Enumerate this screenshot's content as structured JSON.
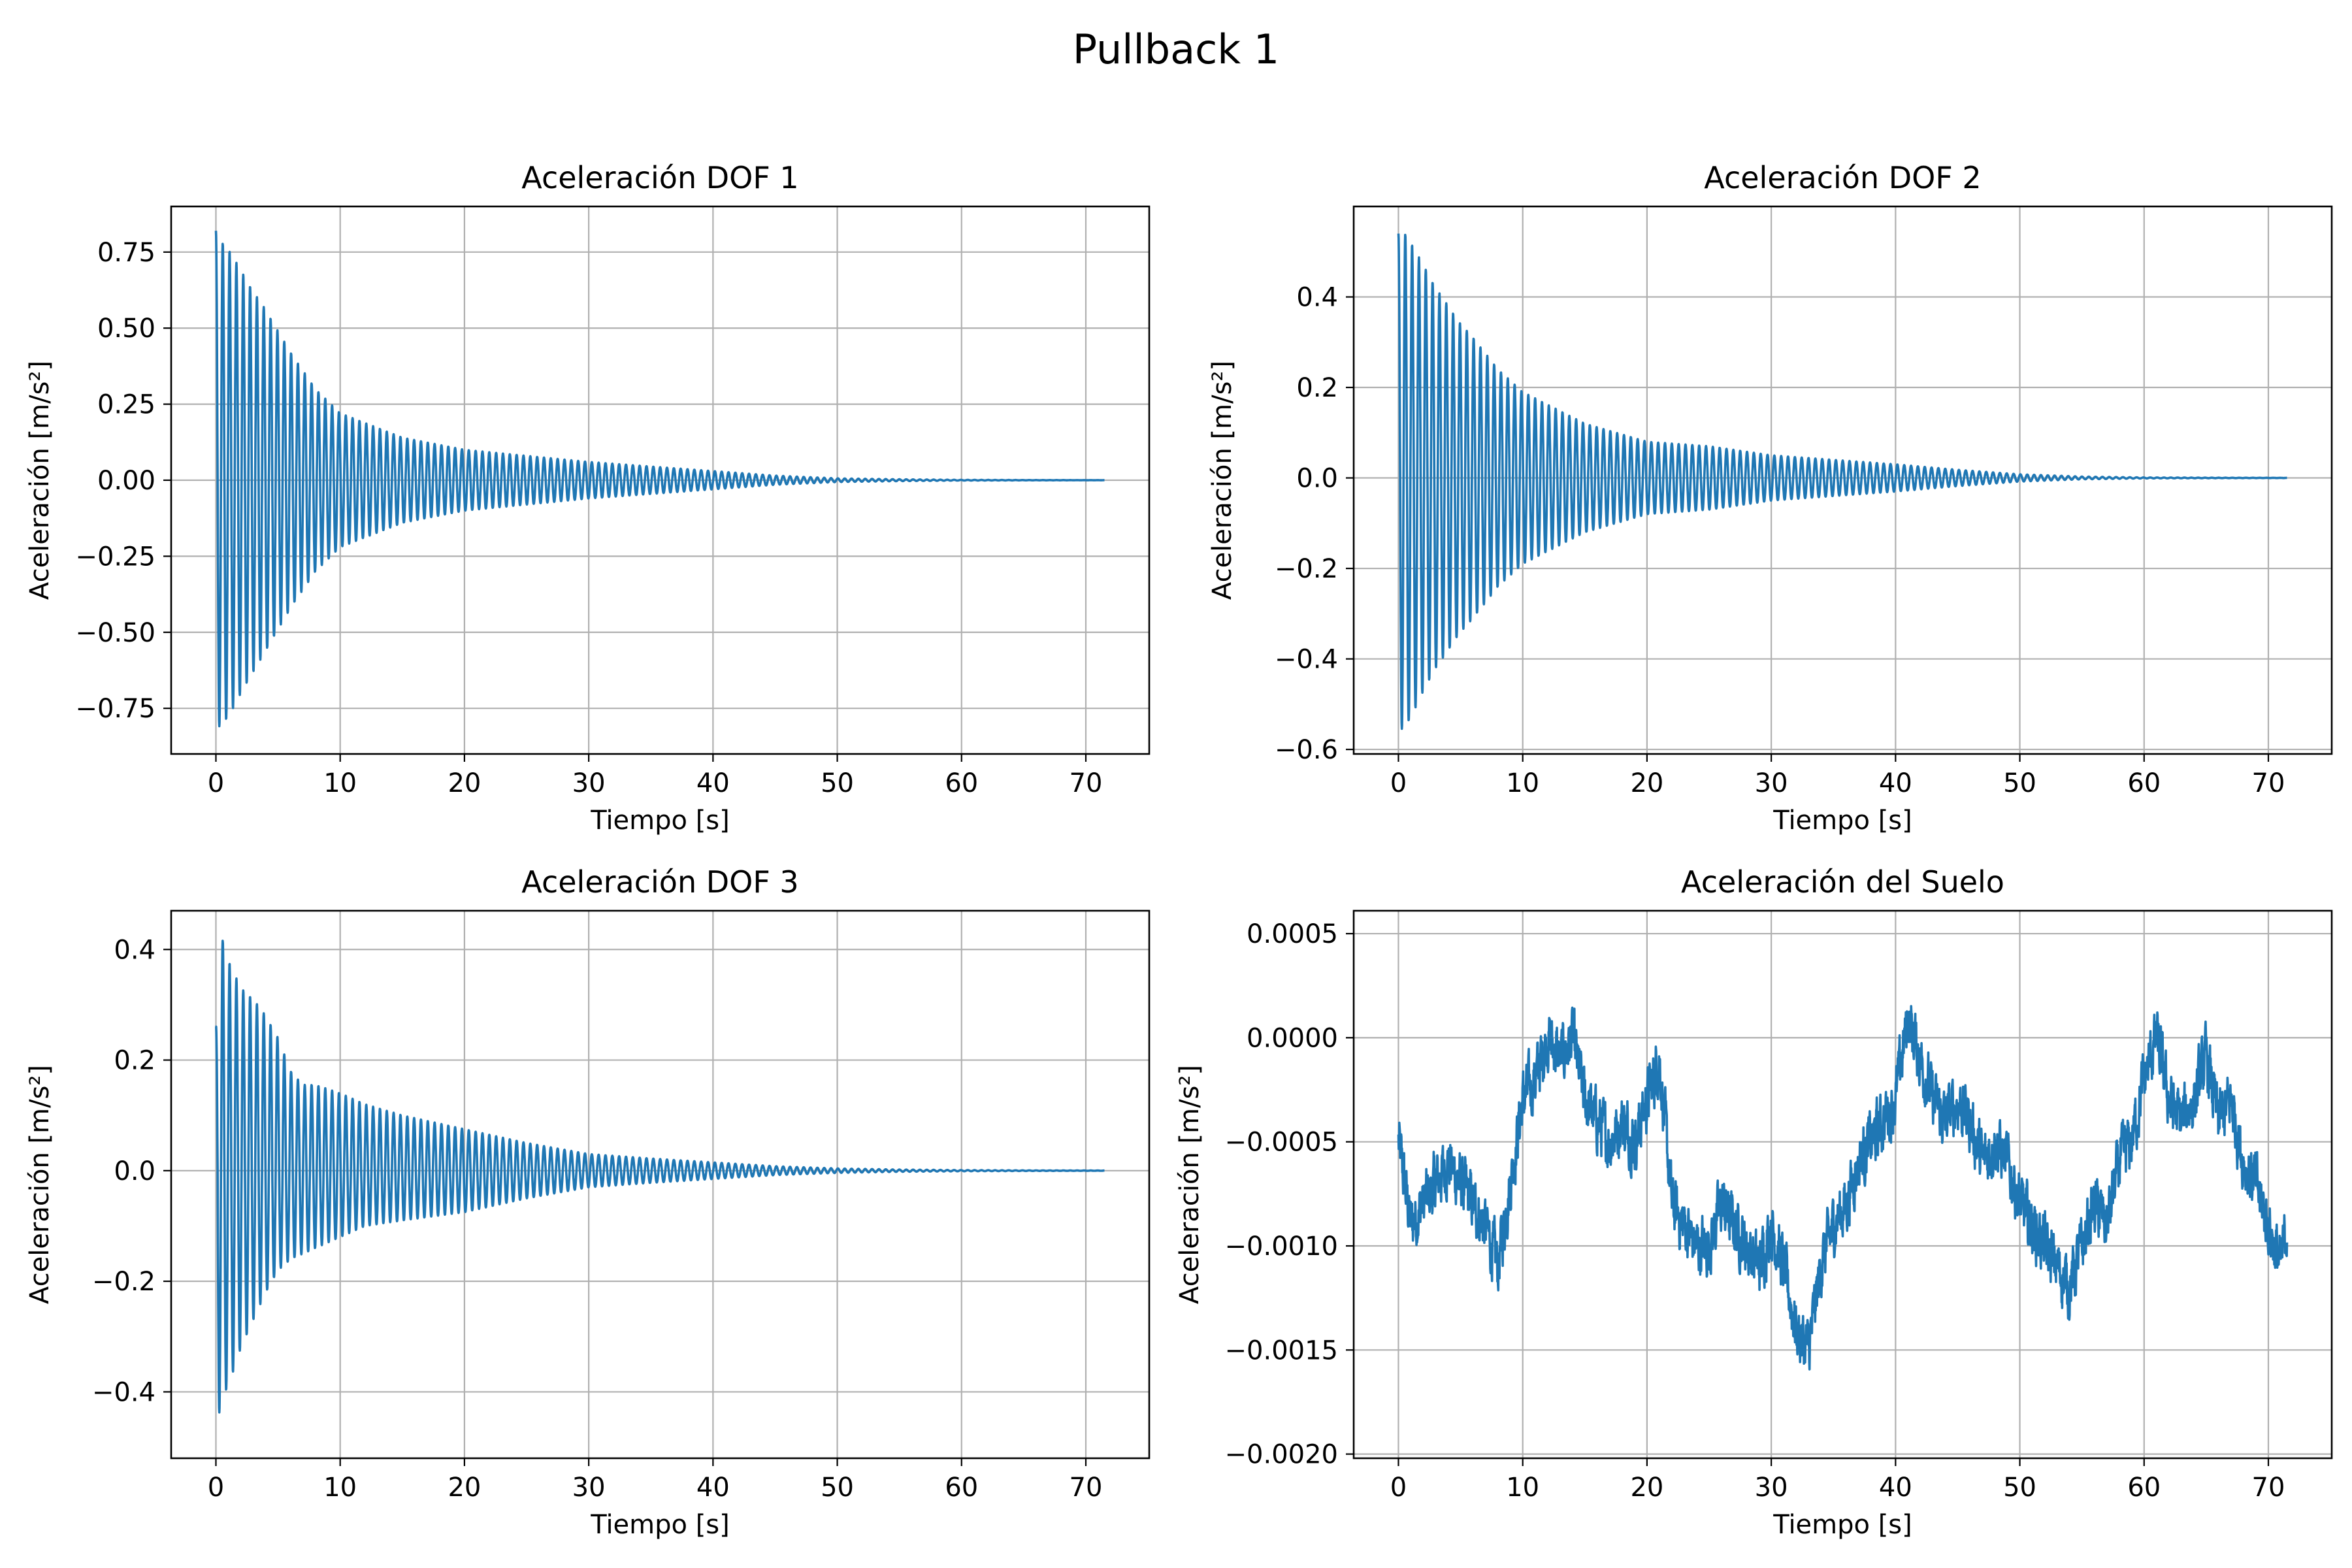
{
  "figure": {
    "title": "Pullback 1"
  },
  "chart_data": [
    {
      "type": "line",
      "title": "Aceleración DOF 1",
      "xlabel": "Tiempo [s]",
      "ylabel": "Aceleración [m/s²]",
      "xlim": [
        -3.6,
        75.1
      ],
      "ylim": [
        -0.9,
        0.9
      ],
      "xticks": [
        0,
        10,
        20,
        30,
        40,
        50,
        60,
        70
      ],
      "xtick_labels": [
        "0",
        "10",
        "20",
        "30",
        "40",
        "50",
        "60",
        "70"
      ],
      "yticks": [
        -0.75,
        -0.5,
        -0.25,
        0,
        0.25,
        0.5,
        0.75
      ],
      "ytick_labels": [
        "−0.75",
        "−0.50",
        "−0.25",
        "0.00",
        "0.25",
        "0.50",
        "0.75"
      ],
      "grid": true,
      "color": "#1f77b4",
      "series": [
        {
          "signal": "damped-oscillation",
          "x_range": [
            0,
            71.5
          ],
          "oscillation_period": 0.55,
          "envelope": {
            "t": [
              0,
              0.5,
              1,
              2,
              3,
              4,
              5,
              6,
              8,
              10,
              15,
              20,
              25,
              30,
              35,
              40,
              45,
              50,
              55,
              60,
              65,
              71.5
            ],
            "upper": [
              0.82,
              0.78,
              0.76,
              0.69,
              0.62,
              0.56,
              0.49,
              0.42,
              0.3,
              0.22,
              0.14,
              0.1,
              0.08,
              0.06,
              0.045,
              0.03,
              0.015,
              0.006,
              0.003,
              0.001,
              0.0005,
              0.0002
            ],
            "lower": [
              -0.82,
              -0.8,
              -0.78,
              -0.7,
              -0.63,
              -0.56,
              -0.49,
              -0.42,
              -0.3,
              -0.22,
              -0.14,
              -0.1,
              -0.08,
              -0.06,
              -0.045,
              -0.03,
              -0.015,
              -0.006,
              -0.003,
              -0.001,
              -0.0005,
              -0.0002
            ]
          }
        }
      ]
    },
    {
      "type": "line",
      "title": "Aceleración DOF 2",
      "xlabel": "Tiempo [s]",
      "ylabel": "Aceleración [m/s²]",
      "xlim": [
        -3.6,
        75.1
      ],
      "ylim": [
        -0.61,
        0.6
      ],
      "xticks": [
        0,
        10,
        20,
        30,
        40,
        50,
        60,
        70
      ],
      "xtick_labels": [
        "0",
        "10",
        "20",
        "30",
        "40",
        "50",
        "60",
        "70"
      ],
      "yticks": [
        -0.6,
        -0.4,
        -0.2,
        0,
        0.2,
        0.4
      ],
      "ytick_labels": [
        "−0.6",
        "−0.4",
        "−0.2",
        "0.0",
        "0.2",
        "0.4"
      ],
      "grid": true,
      "color": "#1f77b4",
      "series": [
        {
          "signal": "damped-oscillation",
          "x_range": [
            0,
            71.5
          ],
          "oscillation_period": 0.55,
          "envelope": {
            "t": [
              0,
              0.5,
              1,
              2,
              3,
              4,
              5,
              6,
              8,
              10,
              15,
              20,
              25,
              30,
              35,
              40,
              45,
              50,
              55,
              60,
              65,
              71.5
            ],
            "upper": [
              0.54,
              0.54,
              0.52,
              0.47,
              0.42,
              0.38,
              0.34,
              0.31,
              0.24,
              0.19,
              0.12,
              0.08,
              0.07,
              0.05,
              0.04,
              0.03,
              0.018,
              0.008,
              0.003,
              0.001,
              0.0005,
              0.0002
            ],
            "lower": [
              -0.56,
              -0.55,
              -0.53,
              -0.47,
              -0.42,
              -0.38,
              -0.34,
              -0.31,
              -0.24,
              -0.19,
              -0.12,
              -0.08,
              -0.07,
              -0.05,
              -0.04,
              -0.03,
              -0.018,
              -0.008,
              -0.003,
              -0.001,
              -0.0005,
              -0.0002
            ]
          }
        }
      ]
    },
    {
      "type": "line",
      "title": "Aceleración DOF 3",
      "xlabel": "Tiempo [s]",
      "ylabel": "Aceleración [m/s²]",
      "xlim": [
        -3.6,
        75.1
      ],
      "ylim": [
        -0.52,
        0.47
      ],
      "xticks": [
        0,
        10,
        20,
        30,
        40,
        50,
        60,
        70
      ],
      "xtick_labels": [
        "0",
        "10",
        "20",
        "30",
        "40",
        "50",
        "60",
        "70"
      ],
      "yticks": [
        -0.4,
        -0.2,
        0,
        0.2,
        0.4
      ],
      "ytick_labels": [
        "−0.4",
        "−0.2",
        "0.0",
        "0.2",
        "0.4"
      ],
      "grid": true,
      "color": "#1f77b4",
      "series": [
        {
          "signal": "damped-oscillation",
          "x_range": [
            0,
            71.5
          ],
          "oscillation_period": 0.55,
          "envelope": {
            "t": [
              0,
              0.5,
              1,
              2,
              3,
              4,
              5,
              6,
              7,
              8,
              10,
              12,
              15,
              20,
              25,
              30,
              35,
              40,
              45,
              50,
              55,
              60,
              65,
              71.5
            ],
            "upper": [
              0.26,
              0.42,
              0.38,
              0.33,
              0.31,
              0.28,
              0.24,
              0.18,
              0.155,
              0.155,
              0.14,
              0.12,
              0.1,
              0.075,
              0.05,
              0.03,
              0.022,
              0.015,
              0.008,
              0.004,
              0.002,
              0.001,
              0.0005,
              0.0002
            ],
            "lower": [
              -0.47,
              -0.41,
              -0.39,
              -0.32,
              -0.27,
              -0.22,
              -0.18,
              -0.16,
              -0.15,
              -0.14,
              -0.12,
              -0.1,
              -0.09,
              -0.075,
              -0.05,
              -0.03,
              -0.022,
              -0.015,
              -0.008,
              -0.004,
              -0.002,
              -0.001,
              -0.0005,
              -0.0002
            ]
          }
        }
      ]
    },
    {
      "type": "line",
      "title": "Aceleración del Suelo",
      "xlabel": "Tiempo [s]",
      "ylabel": "Aceleración [m/s²]",
      "xlim": [
        -3.6,
        75.1
      ],
      "ylim": [
        -0.00202,
        0.00061
      ],
      "xticks": [
        0,
        10,
        20,
        30,
        40,
        50,
        60,
        70
      ],
      "xtick_labels": [
        "0",
        "10",
        "20",
        "30",
        "40",
        "50",
        "60",
        "70"
      ],
      "yticks": [
        -0.002,
        -0.0015,
        -0.001,
        -0.0005,
        0,
        0.0005
      ],
      "ytick_labels": [
        "−0.0020",
        "−0.0015",
        "−0.0010",
        "−0.0005",
        "0.0000",
        "0.0005"
      ],
      "grid": true,
      "color": "#1f77b4",
      "series": [
        {
          "signal": "noisy-trace",
          "x_range": [
            0,
            71.5
          ],
          "noise_amplitude": 0.00014,
          "trend": {
            "t": [
              0,
              1,
              2,
              3,
              4,
              5,
              6,
              7,
              8,
              9,
              10,
              11,
              12,
              13,
              14,
              15,
              16,
              17,
              18,
              19,
              20,
              21,
              22,
              23,
              24,
              25,
              26,
              27,
              28,
              29,
              30,
              31,
              32,
              33,
              34,
              35,
              36,
              37,
              38,
              39,
              40,
              41,
              42,
              43,
              44,
              45,
              46,
              47,
              48,
              49,
              50,
              51,
              52,
              53,
              54,
              55,
              56,
              57,
              58,
              59,
              60,
              61,
              62,
              63,
              64,
              65,
              66,
              67,
              68,
              69,
              70,
              71,
              71.5
            ],
            "y": [
              -0.0005,
              -0.0009,
              -0.0008,
              -0.0007,
              -0.0006,
              -0.0007,
              -0.0008,
              -0.0009,
              -0.0011,
              -0.0007,
              -0.0003,
              -0.0002,
              0.0,
              -0.0001,
              0.0,
              -0.0003,
              -0.0004,
              -0.0005,
              -0.0004,
              -0.0005,
              -0.0003,
              -0.0001,
              -0.0008,
              -0.0009,
              -0.001,
              -0.001,
              -0.0008,
              -0.0009,
              -0.001,
              -0.0011,
              -0.0009,
              -0.0011,
              -0.0014,
              -0.0015,
              -0.0011,
              -0.0009,
              -0.0008,
              -0.0006,
              -0.0005,
              -0.0004,
              -0.0003,
              0.0001,
              -0.0001,
              -0.0003,
              -0.0004,
              -0.0003,
              -0.0004,
              -0.0006,
              -0.0005,
              -0.0006,
              -0.0008,
              -0.0009,
              -0.001,
              -0.0011,
              -0.0012,
              -0.001,
              -0.0008,
              -0.0009,
              -0.0006,
              -0.0005,
              -0.0002,
              0.0,
              -0.0003,
              -0.0004,
              -0.0003,
              -0.0001,
              -0.0004,
              -0.0003,
              -0.0006,
              -0.0007,
              -0.0009,
              -0.0011,
              -0.0009
            ]
          }
        }
      ]
    }
  ]
}
